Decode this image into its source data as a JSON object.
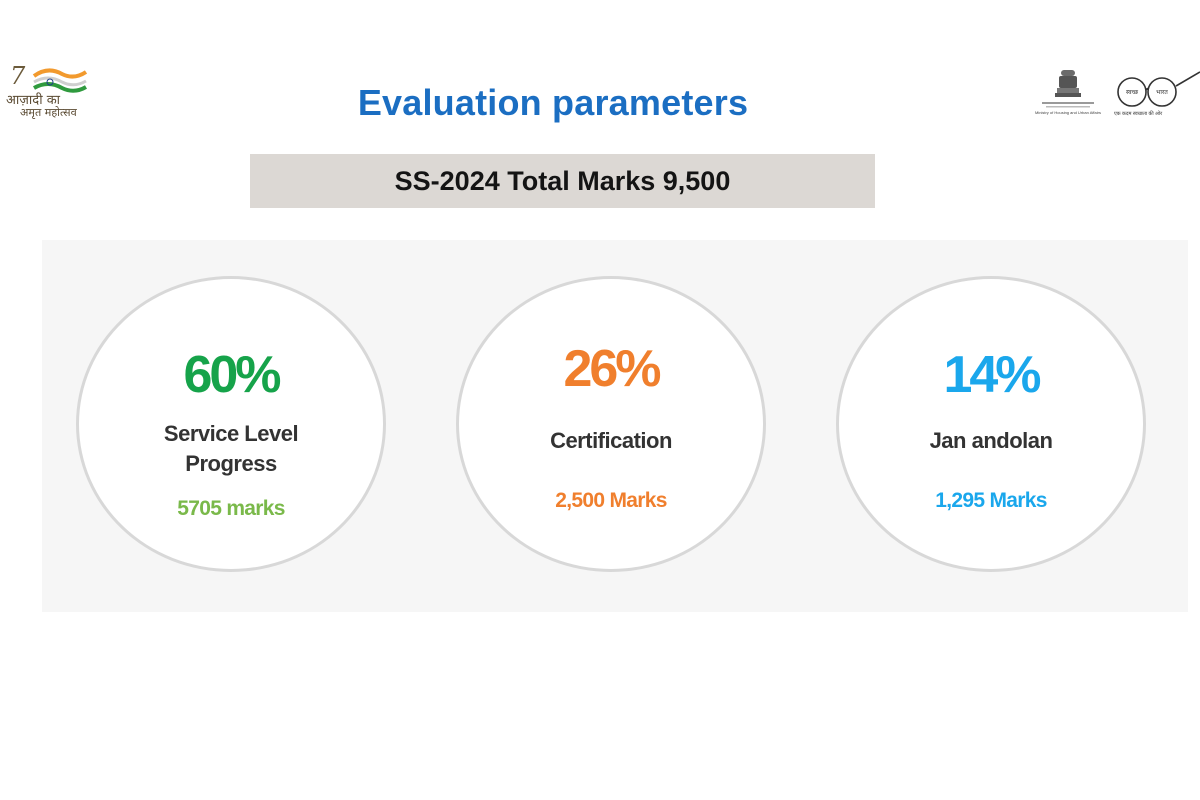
{
  "header": {
    "title": "Evaluation parameters",
    "left_logo": {
      "line1": "आज़ादी का",
      "line2": "अमृत महोत्सव",
      "colors": {
        "saffron": "#f29a2e",
        "green": "#2f9a3e",
        "navy": "#1d3f8a"
      }
    },
    "right_logos": {
      "emblem": "national-emblem",
      "emblem_caption": "Ministry of Housing and Urban Affairs",
      "spectacles": "swachh-bharat-spectacles",
      "spectacle_left": "स्वच्छ",
      "spectacle_right": "भारत",
      "tagline": "एक कदम स्वच्छता की ओर"
    }
  },
  "banner": {
    "text": "SS-2024 Total Marks 9,500"
  },
  "parameters": [
    {
      "percent": "60%",
      "label": "Service Level Progress",
      "marks": "5705 marks",
      "percent_color": "#16a34a",
      "marks_color": "#7ab94a"
    },
    {
      "percent": "26%",
      "label": "Certification",
      "marks": "2,500 Marks",
      "percent_color": "#f07f2d",
      "marks_color": "#f07f2d"
    },
    {
      "percent": "14%",
      "label": "Jan andolan",
      "marks": "1,295 Marks",
      "percent_color": "#1aa7ec",
      "marks_color": "#1aa7ec"
    }
  ]
}
